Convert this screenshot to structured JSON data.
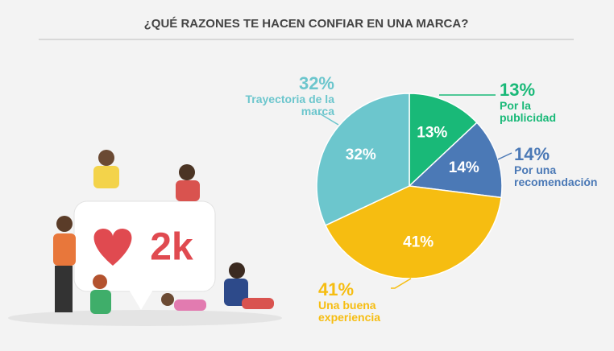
{
  "chart_data": {
    "type": "pie",
    "title": "¿QUÉ RAZONES TE HACEN CONFIAR EN UNA MARCA?",
    "categories": [
      "Por la publicidad",
      "Por una recomendación",
      "Una buena experiencia",
      "Trayectoria de la marca"
    ],
    "values": [
      13,
      14,
      41,
      32
    ],
    "value_labels": [
      "13%",
      "14%",
      "41%",
      "32%"
    ],
    "colors": [
      "#19b978",
      "#4b79b6",
      "#f6bd11",
      "#6cc6cd"
    ]
  },
  "illustration": {
    "badge": "2k"
  }
}
